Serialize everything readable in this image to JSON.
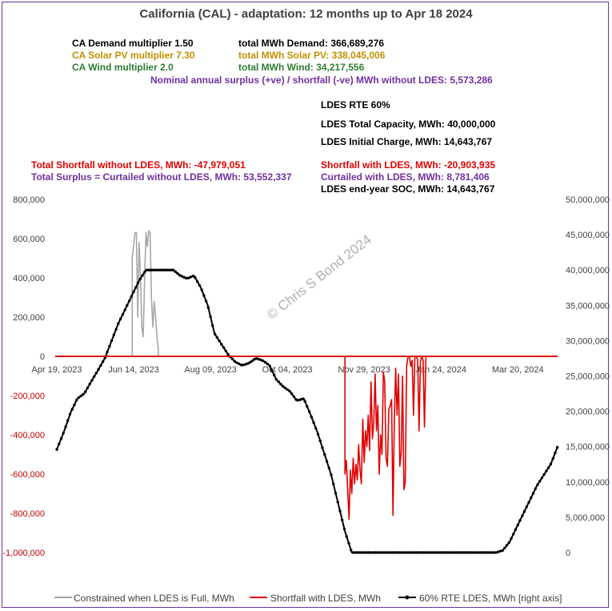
{
  "title": "California (CAL) - adaptation:  12 months up to  Apr 18 2024",
  "params": {
    "demand_mult": "CA Demand multiplier  1.50",
    "solar_mult": "CA Solar PV multiplier  7.30",
    "wind_mult": "CA Wind multiplier  2.0",
    "total_demand": "total MWh Demand:  366,689,276",
    "total_solar": "total MWh Solar PV:  338,045,006",
    "total_wind": "total MWh Wind:  34,217,556",
    "surplus": "Nominal annual surplus (+ve) / shortfall (-ve) MWh without LDES: 5,573,286",
    "rte": "LDES RTE 60%",
    "capacity": "LDES Total Capacity, MWh: 40,000,000",
    "initial": "LDES Initial Charge, MWh:  14,643,767",
    "shortfall_no": "Total Shortfall without LDES, MWh: -47,979,051",
    "surplus_no": "Total Surplus = Curtailed without LDES, MWh: 53,552,337",
    "shortfall_with": "Shortfall with LDES, MWh: -20,903,935",
    "curtailed_with": "Curtailed with LDES, MWh: 8,781,406",
    "soc": "LDES end-year SOC, MWh: 14,643,767"
  },
  "colors": {
    "demand": "#000000",
    "solar": "#c09000",
    "wind": "#2e7d32",
    "purple": "#7030a0",
    "red": "#e00000",
    "gray": "#a6a6a6",
    "title": "#404040"
  },
  "watermark": "© Chris S Bond  2024",
  "chart_data": {
    "type": "line",
    "x_tick_labels": [
      "Apr 19, 2023",
      "Jun 14, 2023",
      "Aug 09, 2023",
      "Oct 04, 2023",
      "Nov 29, 2023",
      "Jan 24, 2024",
      "Mar 20, 2024"
    ],
    "left_axis": {
      "ticks": [
        "800,000",
        "600,000",
        "400,000",
        "200,000",
        "0",
        "-200,000",
        "-400,000",
        "-600,000",
        "-800,000",
        "-1,000,000"
      ],
      "ylim": [
        -1000000,
        800000
      ]
    },
    "right_axis": {
      "ticks": [
        "50,000,000",
        "45,000,000",
        "40,000,000",
        "35,000,000",
        "30,000,000",
        "25,000,000",
        "20,000,000",
        "15,000,000",
        "10,000,000",
        "5,000,000",
        "0"
      ],
      "ylim": [
        0,
        50000000
      ]
    },
    "x_range_days": [
      0,
      365
    ],
    "series": [
      {
        "name": "Constrained when LDES is Full, MWh",
        "axis": "left",
        "color": "#a6a6a6",
        "x": [
          0,
          55,
          55,
          57,
          58,
          59,
          60,
          61,
          62,
          63,
          64,
          65,
          66,
          67,
          68,
          69,
          70,
          71,
          72,
          73,
          74,
          74,
          365
        ],
        "y": [
          0,
          0,
          500000,
          630000,
          630000,
          200000,
          580000,
          400000,
          150000,
          100000,
          400000,
          630000,
          560000,
          640000,
          630000,
          300000,
          150000,
          280000,
          200000,
          100000,
          30000,
          0,
          0
        ]
      },
      {
        "name": "Shortfall with LDES, MWh",
        "axis": "left",
        "color": "#e00000",
        "x": [
          0,
          210,
          210,
          211,
          212,
          213,
          214,
          215,
          216,
          217,
          218,
          219,
          220,
          221,
          222,
          223,
          224,
          225,
          226,
          227,
          228,
          229,
          230,
          231,
          232,
          233,
          234,
          235,
          236,
          237,
          238,
          239,
          240,
          241,
          242,
          243,
          244,
          245,
          246,
          247,
          248,
          249,
          250,
          251,
          252,
          253,
          254,
          255,
          256,
          257,
          258,
          259,
          260,
          261,
          262,
          263,
          264,
          265,
          266,
          267,
          268,
          269,
          270,
          270,
          365
        ],
        "y": [
          0,
          0,
          -600000,
          -530000,
          -680000,
          -830000,
          -580000,
          -700000,
          -520000,
          -650000,
          -550000,
          -630000,
          -450000,
          -580000,
          -650000,
          -320000,
          -540000,
          -380000,
          -460000,
          -300000,
          -480000,
          -130000,
          -420000,
          -340000,
          -90000,
          -380000,
          -250000,
          -600000,
          -400000,
          -500000,
          -80000,
          -130000,
          -520000,
          -560000,
          -270000,
          -250000,
          -220000,
          -810000,
          -330000,
          -60000,
          -300000,
          -90000,
          -560000,
          -490000,
          -100000,
          -680000,
          -640000,
          -50000,
          0,
          0,
          -50000,
          -20000,
          -300000,
          0,
          0,
          -20000,
          -380000,
          -30000,
          0,
          -20000,
          -360000,
          0,
          0,
          0,
          0
        ]
      },
      {
        "name": "60%  RTE LDES, MWh [right axis]",
        "axis": "right",
        "color": "#000000",
        "x": [
          0,
          5,
          10,
          15,
          20,
          25,
          30,
          35,
          40,
          45,
          50,
          55,
          60,
          65,
          70,
          75,
          80,
          85,
          90,
          95,
          100,
          105,
          110,
          115,
          120,
          125,
          130,
          135,
          140,
          145,
          150,
          155,
          160,
          165,
          170,
          175,
          180,
          185,
          190,
          195,
          200,
          205,
          210,
          215,
          220,
          225,
          230,
          235,
          240,
          245,
          250,
          255,
          260,
          265,
          270,
          275,
          280,
          285,
          290,
          295,
          300,
          305,
          310,
          315,
          320,
          325,
          330,
          335,
          340,
          345,
          350,
          355,
          360,
          365
        ],
        "y": [
          14600000,
          17000000,
          19800000,
          21800000,
          22500000,
          24200000,
          25800000,
          27500000,
          30000000,
          32500000,
          34500000,
          36500000,
          38500000,
          40000000,
          40000000,
          40000000,
          40000000,
          40000000,
          39200000,
          38800000,
          39200000,
          37500000,
          35000000,
          31000000,
          29500000,
          28000000,
          27000000,
          26500000,
          26800000,
          27500000,
          27200000,
          26500000,
          24500000,
          23500000,
          22800000,
          21500000,
          21800000,
          19500000,
          17000000,
          14000000,
          11000000,
          7000000,
          3000000,
          0,
          0,
          0,
          0,
          0,
          0,
          0,
          0,
          0,
          0,
          0,
          0,
          0,
          0,
          0,
          0,
          0,
          0,
          0,
          0,
          0,
          0,
          300000,
          1500000,
          3500000,
          5500000,
          7500000,
          9500000,
          11000000,
          12500000,
          15000000
        ]
      }
    ]
  },
  "legend": [
    {
      "label": "Constrained when LDES is Full, MWh"
    },
    {
      "label": "Shortfall with LDES, MWh"
    },
    {
      "label": "60%  RTE LDES, MWh [right axis]"
    }
  ]
}
